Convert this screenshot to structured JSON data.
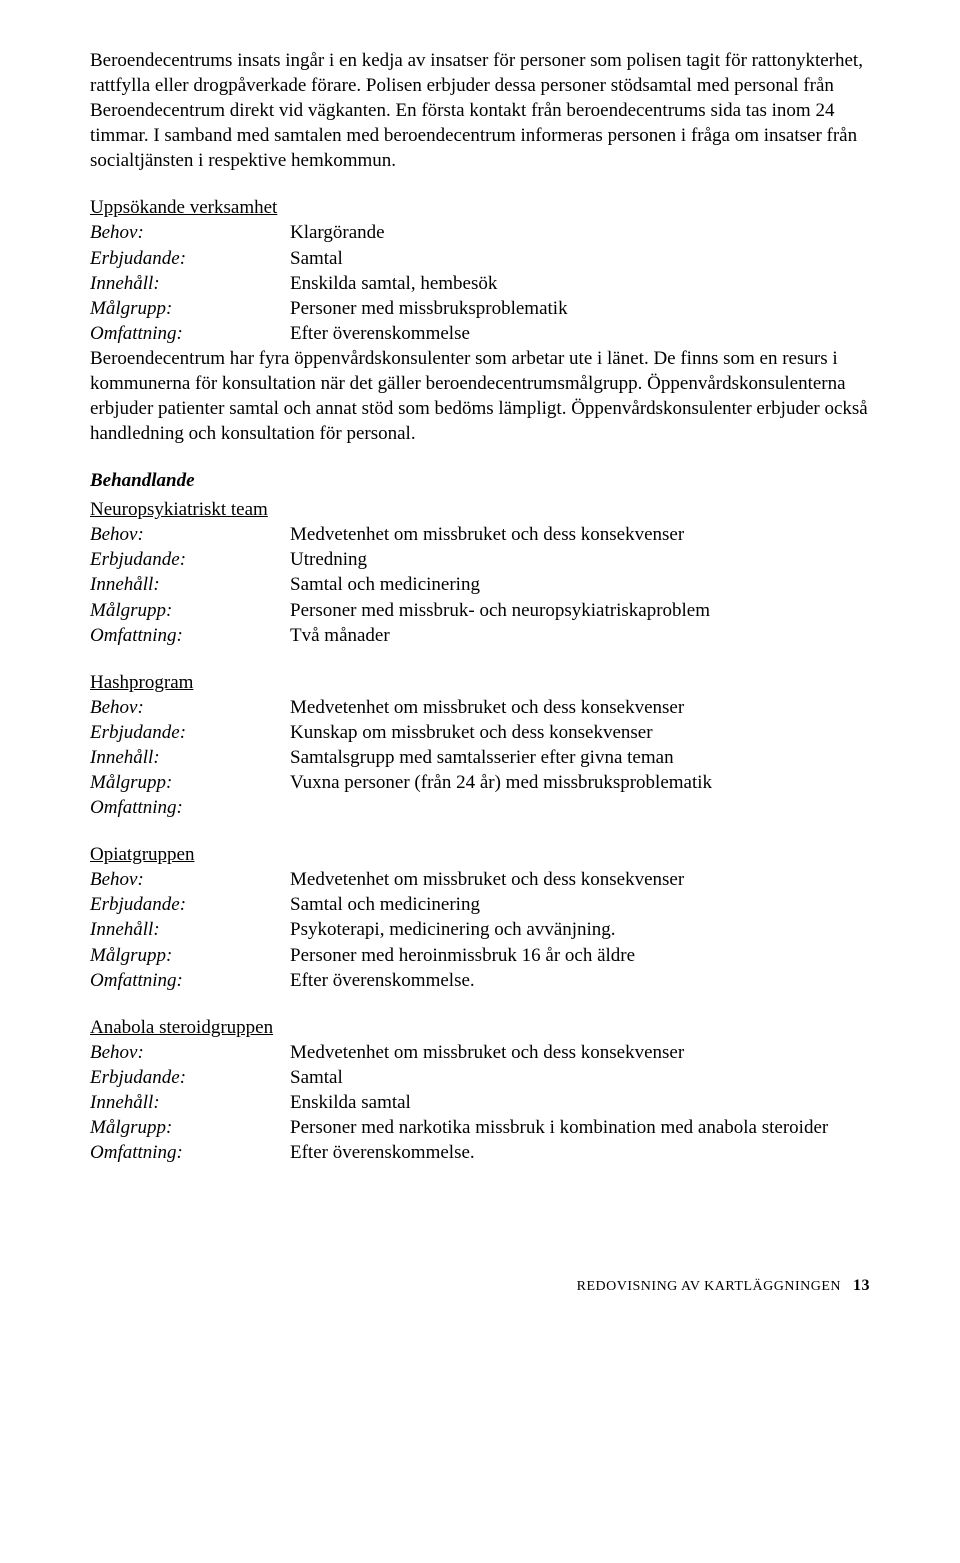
{
  "intro": "Beroendecentrums insats ingår i en kedja av insatser för personer som polisen tagit för rattonykterhet, rattfylla eller drogpåverkade förare. Polisen erbjuder dessa personer stödsamtal med personal från Beroendecentrum direkt vid vägkanten. En första kontakt från beroendecentrums sida tas inom 24 timmar. I samband med samtalen med beroendecentrum informeras personen i fråga om insatser från socialtjänsten i respektive hemkommun.",
  "labels": {
    "behov": "Behov:",
    "erbjudande": "Erbjudande:",
    "innehall": "Innehåll:",
    "malgrupp": "Målgrupp:",
    "omfattning": "Omfattning:"
  },
  "uppsokande": {
    "heading": "Uppsökande verksamhet",
    "behov": "Klargörande",
    "erbjudande": "Samtal",
    "innehall": "Enskilda samtal, hembesök",
    "malgrupp": "Personer med missbruksproblematik",
    "omfattning": "Efter överenskommelse",
    "after": "Beroendecentrum har fyra öppenvårdskonsulenter som arbetar ute i länet. De finns som en resurs i kommunerna för konsultation när det gäller beroendecentrumsmålgrupp. Öppenvårdskonsulenterna erbjuder patienter samtal och annat stöd som bedöms lämpligt. Öppenvårdskonsulenter erbjuder också handledning och konsultation för personal."
  },
  "behandlande_heading": "Behandlande",
  "neuro": {
    "heading": "Neuropsykiatriskt team",
    "behov": "Medvetenhet om missbruket och dess konsekvenser",
    "erbjudande": "Utredning",
    "innehall": "Samtal och medicinering",
    "malgrupp": "Personer med missbruk- och neuropsykiatriskaproblem",
    "omfattning": "Två månader"
  },
  "hash": {
    "heading": "Hashprogram",
    "behov": "Medvetenhet om missbruket och dess konsekvenser",
    "erbjudande": "Kunskap om missbruket och dess konsekvenser",
    "innehall": "Samtalsgrupp med samtalsserier efter givna teman",
    "malgrupp": "Vuxna personer (från 24 år) med missbruksproblematik",
    "omfattning": ""
  },
  "opiat": {
    "heading": "Opiatgruppen",
    "behov": "Medvetenhet om missbruket och dess konsekvenser",
    "erbjudande": "Samtal och medicinering",
    "innehall": "Psykoterapi, medicinering och avvänjning.",
    "malgrupp": "Personer med heroinmissbruk 16 år och äldre",
    "omfattning": "Efter överenskommelse."
  },
  "anabola": {
    "heading": "Anabola steroidgruppen",
    "behov": "Medvetenhet om missbruket och dess konsekvenser",
    "erbjudande": "Samtal",
    "innehall": "Enskilda samtal",
    "malgrupp": "Personer med narkotika missbruk i kombination med anabola steroider",
    "omfattning": "Efter överenskommelse."
  },
  "footer": {
    "text": "REDOVISNING AV KARTLÄGGNINGEN",
    "page": "13"
  }
}
